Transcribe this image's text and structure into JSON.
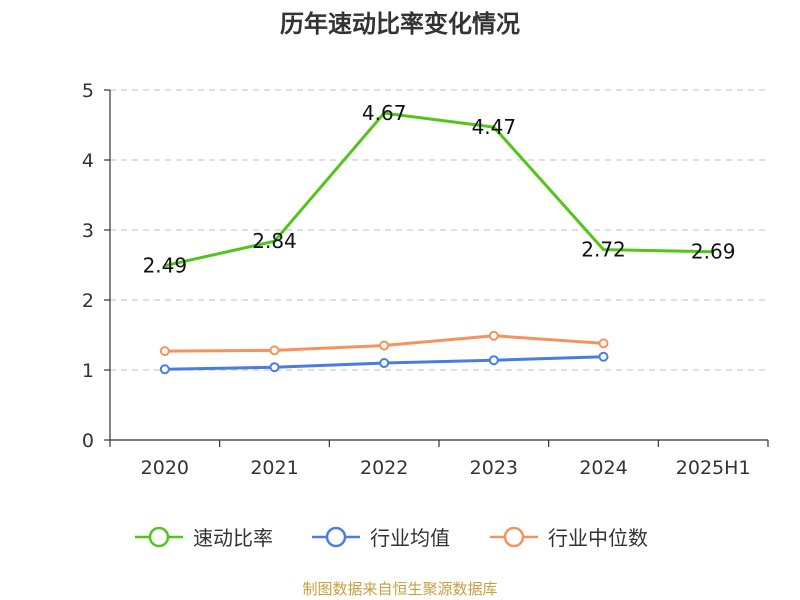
{
  "title": "历年速动比率变化情况",
  "footer": "制图数据来自恒生聚源数据库",
  "colors": {
    "quick_ratio": "#52c41a",
    "industry_avg": "#4a7de0",
    "industry_median": "#f5925e",
    "footer": "#c8a040",
    "grid": "#cccccc",
    "axis": "#333333"
  },
  "chart_data": {
    "type": "line",
    "title": "历年速动比率变化情况",
    "categories": [
      "2020",
      "2021",
      "2022",
      "2023",
      "2024",
      "2025H1"
    ],
    "ylim": [
      0,
      5
    ],
    "yticks": [
      "0",
      "1",
      "2",
      "3",
      "4",
      "5"
    ],
    "grid": true,
    "legend_position": "bottom",
    "series": [
      {
        "name": "速动比率",
        "values": [
          2.49,
          2.84,
          4.67,
          4.47,
          2.72,
          2.69
        ],
        "labels": [
          "2.49",
          "2.84",
          "4.67",
          "4.47",
          "2.72",
          "2.69"
        ]
      },
      {
        "name": "行业均值",
        "values": [
          1.01,
          1.04,
          1.1,
          1.14,
          1.19,
          null
        ]
      },
      {
        "name": "行业中位数",
        "values": [
          1.27,
          1.28,
          1.35,
          1.49,
          1.38,
          null
        ]
      }
    ]
  }
}
